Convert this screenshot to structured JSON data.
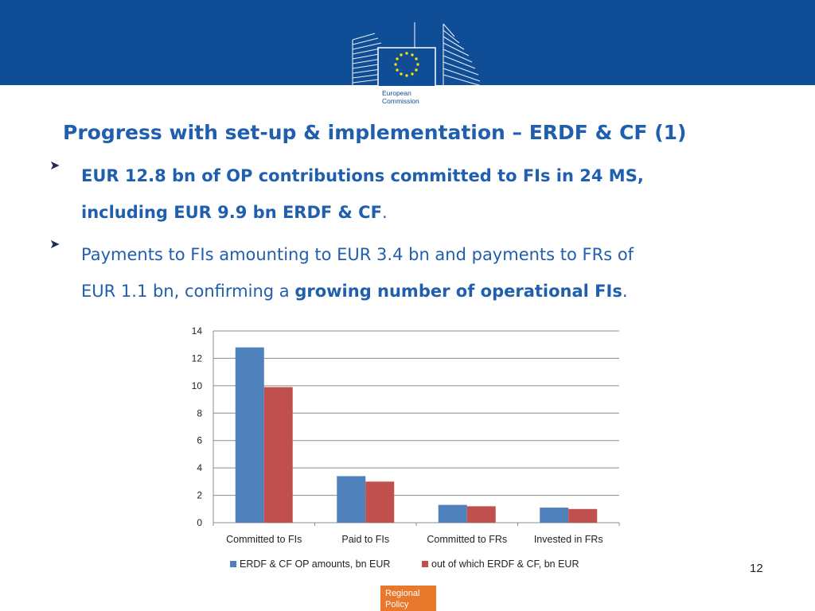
{
  "header": {
    "logo_text": "European Commission"
  },
  "slide": {
    "title": "Progress with set-up & implementation – ERDF & CF (1)",
    "bullet1_line1": "EUR 12.8 bn of OP contributions committed to FIs in 24 MS,",
    "bullet1_line2": "including EUR 9.9 bn ERDF & CF",
    "bullet1_end": ".",
    "bullet2_line1": "Payments to FIs amounting to EUR 3.4 bn and payments to FRs of",
    "bullet2_line2_pre": "EUR 1.1 bn, confirming a ",
    "bullet2_line2_bold": "growing number of operational FIs",
    "bullet2_line2_end": "."
  },
  "chart_data": {
    "type": "bar",
    "categories": [
      "Committed to FIs",
      "Paid to FIs",
      "Committed to FRs",
      "Invested in FRs"
    ],
    "series": [
      {
        "name": "ERDF & CF OP amounts, bn EUR",
        "values": [
          12.8,
          3.4,
          1.3,
          1.1
        ],
        "color": "#4f81bd"
      },
      {
        "name": "out of which ERDF & CF, bn EUR",
        "values": [
          9.9,
          3.0,
          1.2,
          1.0
        ],
        "color": "#c0504d"
      }
    ],
    "title": "",
    "xlabel": "",
    "ylabel": "",
    "ylim": [
      0,
      14
    ],
    "yticks": [
      0,
      2,
      4,
      6,
      8,
      10,
      12,
      14
    ],
    "grid": true,
    "legend_position": "bottom"
  },
  "footer": {
    "page_number": "12",
    "dg_tag": "Regional Policy"
  },
  "colors": {
    "header_band": "#0f4e96",
    "title_text": "#1f5fae",
    "dg_tag": "#e8792c"
  }
}
